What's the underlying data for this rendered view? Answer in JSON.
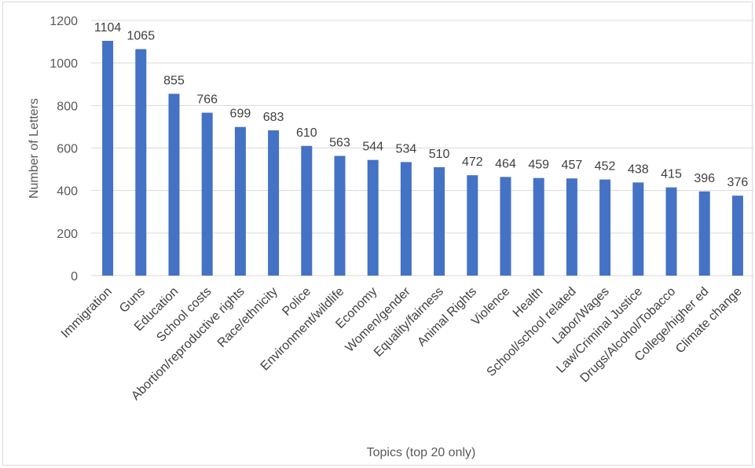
{
  "chart_data": {
    "type": "bar",
    "title": "",
    "xlabel": "Topics (top 20 only)",
    "ylabel": "Number of Letters",
    "ylim": [
      0,
      1200
    ],
    "yticks": [
      0,
      200,
      400,
      600,
      800,
      1000,
      1200
    ],
    "grid": true,
    "legend": "none",
    "bar_color": "#4472C4",
    "categories": [
      "Immigration",
      "Guns",
      "Education",
      "School costs",
      "Abortion/reproductive rights",
      "Race/ethnicity",
      "Police",
      "Environment/wildlife",
      "Economy",
      "Women/gender",
      "Equality/fairness",
      "Animal Rights",
      "Violence",
      "Health",
      "School/school related",
      "Labor/Wages",
      "Law/Criminal Justice",
      "Drugs/Alcohol/Tobacco",
      "College/higher ed",
      "Climate change"
    ],
    "values": [
      1104,
      1065,
      855,
      766,
      699,
      683,
      610,
      563,
      544,
      534,
      510,
      472,
      464,
      459,
      457,
      452,
      438,
      415,
      396,
      376
    ]
  }
}
